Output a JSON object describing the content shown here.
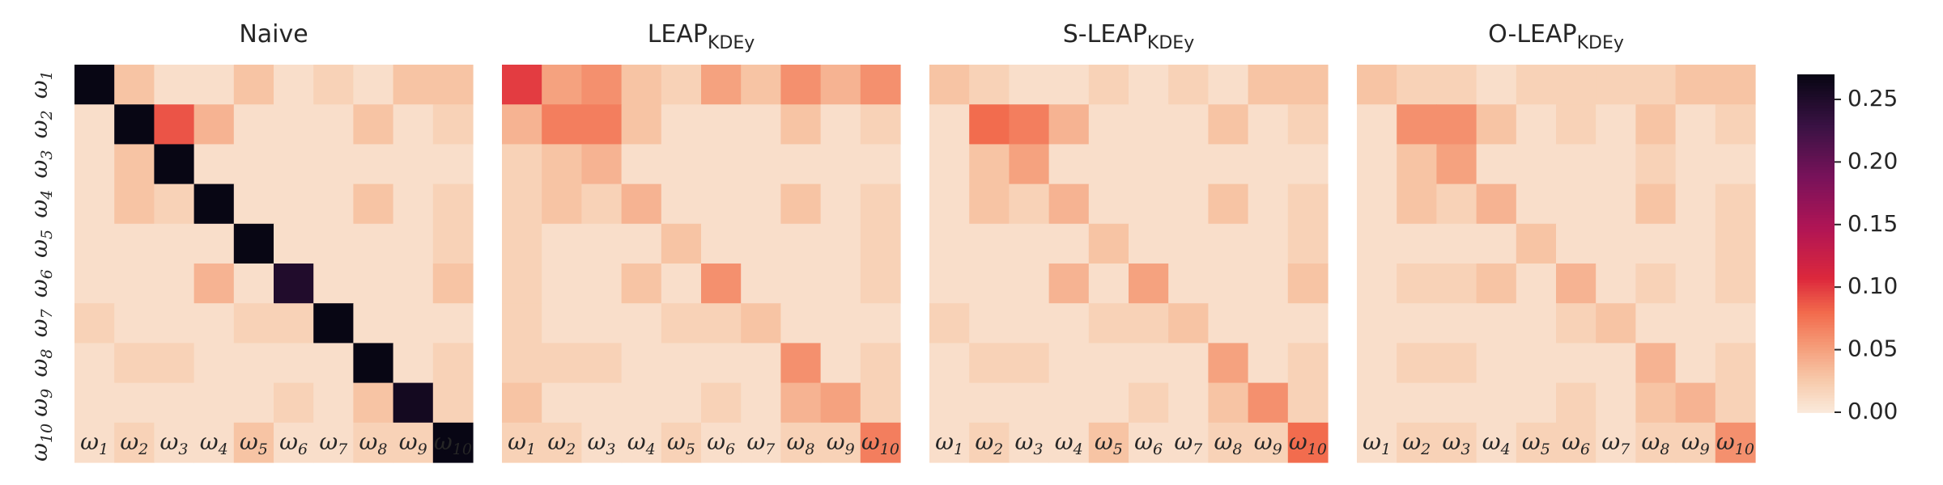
{
  "chart_data": {
    "type": "heatmap",
    "vmin": 0,
    "vmax": 0.27,
    "colormap": "rocket_r",
    "colorbar": {
      "ticks": [
        "0.00",
        "0.05",
        "0.10",
        "0.15",
        "0.20",
        "0.25"
      ],
      "tick_values": [
        0,
        0.05,
        0.1,
        0.15,
        0.2,
        0.25
      ]
    },
    "categories": [
      "ω₁",
      "ω₂",
      "ω₃",
      "ω₄",
      "ω₅",
      "ω₆",
      "ω₇",
      "ω₈",
      "ω₉",
      "ω₁₀"
    ],
    "tick_labels": [
      {
        "base": "ω",
        "sub": "1"
      },
      {
        "base": "ω",
        "sub": "2"
      },
      {
        "base": "ω",
        "sub": "3"
      },
      {
        "base": "ω",
        "sub": "4"
      },
      {
        "base": "ω",
        "sub": "5"
      },
      {
        "base": "ω",
        "sub": "6"
      },
      {
        "base": "ω",
        "sub": "7"
      },
      {
        "base": "ω",
        "sub": "8"
      },
      {
        "base": "ω",
        "sub": "9"
      },
      {
        "base": "ω",
        "sub": "10"
      }
    ],
    "panels": [
      {
        "title": "Naive",
        "title_main": "Naive",
        "title_sub": "",
        "matrix": [
          [
            0.27,
            0.03,
            0.01,
            0.01,
            0.03,
            0.01,
            0.02,
            0.01,
            0.03,
            0.03
          ],
          [
            0.01,
            0.27,
            0.09,
            0.04,
            0.01,
            0.01,
            0.01,
            0.03,
            0.01,
            0.02
          ],
          [
            0.01,
            0.03,
            0.27,
            0.01,
            0.01,
            0.01,
            0.01,
            0.01,
            0.01,
            0.01
          ],
          [
            0.01,
            0.03,
            0.02,
            0.27,
            0.01,
            0.01,
            0.01,
            0.03,
            0.01,
            0.02
          ],
          [
            0.01,
            0.01,
            0.01,
            0.01,
            0.27,
            0.01,
            0.01,
            0.01,
            0.01,
            0.02
          ],
          [
            0.01,
            0.01,
            0.01,
            0.04,
            0.01,
            0.25,
            0.01,
            0.01,
            0.01,
            0.03
          ],
          [
            0.02,
            0.01,
            0.01,
            0.01,
            0.02,
            0.02,
            0.27,
            0.01,
            0.01,
            0.01
          ],
          [
            0.01,
            0.02,
            0.02,
            0.01,
            0.01,
            0.01,
            0.01,
            0.27,
            0.01,
            0.02
          ],
          [
            0.01,
            0.01,
            0.01,
            0.01,
            0.01,
            0.02,
            0.01,
            0.03,
            0.26,
            0.02
          ],
          [
            0.01,
            0.02,
            0.01,
            0.01,
            0.03,
            0.01,
            0.01,
            0.02,
            0.02,
            0.27
          ]
        ]
      },
      {
        "title": "LEAPKDEy",
        "title_main": "LEAP",
        "title_sub": "KDEy",
        "matrix": [
          [
            0.1,
            0.05,
            0.06,
            0.03,
            0.02,
            0.05,
            0.03,
            0.06,
            0.04,
            0.06
          ],
          [
            0.04,
            0.07,
            0.07,
            0.03,
            0.01,
            0.01,
            0.01,
            0.03,
            0.01,
            0.02
          ],
          [
            0.02,
            0.03,
            0.04,
            0.01,
            0.01,
            0.01,
            0.01,
            0.01,
            0.01,
            0.01
          ],
          [
            0.02,
            0.03,
            0.02,
            0.04,
            0.01,
            0.01,
            0.01,
            0.03,
            0.01,
            0.02
          ],
          [
            0.02,
            0.01,
            0.01,
            0.01,
            0.03,
            0.01,
            0.01,
            0.01,
            0.01,
            0.02
          ],
          [
            0.02,
            0.01,
            0.01,
            0.03,
            0.01,
            0.06,
            0.01,
            0.01,
            0.01,
            0.02
          ],
          [
            0.02,
            0.01,
            0.01,
            0.01,
            0.02,
            0.02,
            0.03,
            0.01,
            0.01,
            0.01
          ],
          [
            0.02,
            0.02,
            0.02,
            0.01,
            0.01,
            0.01,
            0.01,
            0.06,
            0.01,
            0.02
          ],
          [
            0.03,
            0.01,
            0.01,
            0.01,
            0.01,
            0.02,
            0.01,
            0.04,
            0.05,
            0.02
          ],
          [
            0.02,
            0.02,
            0.01,
            0.01,
            0.02,
            0.01,
            0.01,
            0.02,
            0.02,
            0.07
          ]
        ]
      },
      {
        "title": "S-LEAPKDEy",
        "title_main": "S-LEAP",
        "title_sub": "KDEy",
        "matrix": [
          [
            0.03,
            0.02,
            0.01,
            0.01,
            0.02,
            0.01,
            0.02,
            0.01,
            0.03,
            0.03
          ],
          [
            0.01,
            0.08,
            0.07,
            0.04,
            0.01,
            0.01,
            0.01,
            0.03,
            0.01,
            0.02
          ],
          [
            0.01,
            0.03,
            0.05,
            0.01,
            0.01,
            0.01,
            0.01,
            0.01,
            0.01,
            0.01
          ],
          [
            0.01,
            0.03,
            0.02,
            0.04,
            0.01,
            0.01,
            0.01,
            0.03,
            0.01,
            0.02
          ],
          [
            0.01,
            0.01,
            0.01,
            0.01,
            0.03,
            0.01,
            0.01,
            0.01,
            0.01,
            0.02
          ],
          [
            0.01,
            0.01,
            0.01,
            0.04,
            0.01,
            0.05,
            0.01,
            0.01,
            0.01,
            0.03
          ],
          [
            0.02,
            0.01,
            0.01,
            0.01,
            0.02,
            0.02,
            0.03,
            0.01,
            0.01,
            0.01
          ],
          [
            0.01,
            0.02,
            0.02,
            0.01,
            0.01,
            0.01,
            0.01,
            0.05,
            0.01,
            0.02
          ],
          [
            0.01,
            0.01,
            0.01,
            0.01,
            0.01,
            0.02,
            0.01,
            0.03,
            0.06,
            0.02
          ],
          [
            0.01,
            0.02,
            0.01,
            0.01,
            0.03,
            0.01,
            0.01,
            0.02,
            0.02,
            0.08
          ]
        ]
      },
      {
        "title": "O-LEAPKDEy",
        "title_main": "O-LEAP",
        "title_sub": "KDEy",
        "matrix": [
          [
            0.03,
            0.02,
            0.02,
            0.01,
            0.02,
            0.02,
            0.02,
            0.02,
            0.03,
            0.03
          ],
          [
            0.01,
            0.06,
            0.06,
            0.03,
            0.01,
            0.02,
            0.01,
            0.03,
            0.01,
            0.02
          ],
          [
            0.01,
            0.03,
            0.05,
            0.01,
            0.01,
            0.01,
            0.01,
            0.02,
            0.01,
            0.01
          ],
          [
            0.01,
            0.03,
            0.02,
            0.04,
            0.01,
            0.01,
            0.01,
            0.03,
            0.01,
            0.02
          ],
          [
            0.01,
            0.01,
            0.01,
            0.01,
            0.03,
            0.01,
            0.01,
            0.01,
            0.01,
            0.02
          ],
          [
            0.01,
            0.02,
            0.02,
            0.03,
            0.01,
            0.04,
            0.01,
            0.02,
            0.01,
            0.02
          ],
          [
            0.01,
            0.01,
            0.01,
            0.01,
            0.01,
            0.02,
            0.03,
            0.01,
            0.01,
            0.01
          ],
          [
            0.01,
            0.02,
            0.02,
            0.01,
            0.01,
            0.01,
            0.01,
            0.04,
            0.01,
            0.02
          ],
          [
            0.01,
            0.01,
            0.01,
            0.01,
            0.01,
            0.02,
            0.01,
            0.03,
            0.04,
            0.02
          ],
          [
            0.01,
            0.02,
            0.02,
            0.01,
            0.02,
            0.02,
            0.01,
            0.02,
            0.02,
            0.06
          ]
        ]
      }
    ]
  }
}
